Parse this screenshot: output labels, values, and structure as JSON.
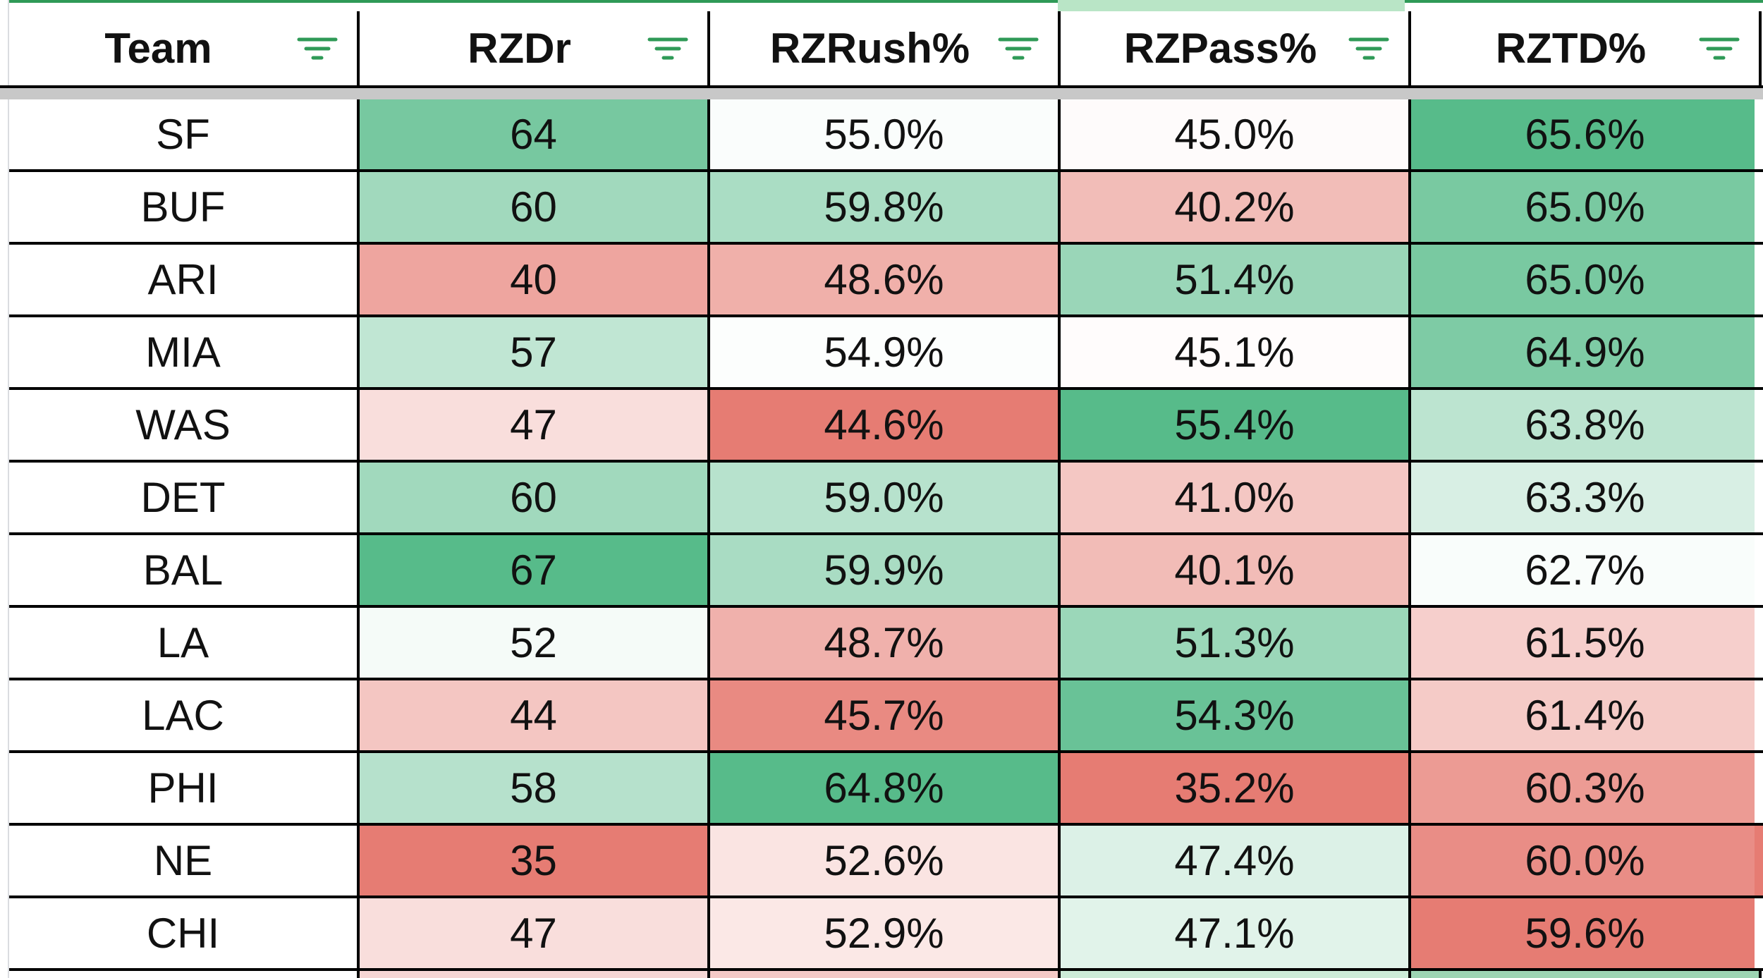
{
  "columns": [
    {
      "label": "Team",
      "icon": "filter-icon"
    },
    {
      "label": "RZDr",
      "icon": "filter-icon"
    },
    {
      "label": "RZRush%",
      "icon": "filter-icon"
    },
    {
      "label": "RZPass%",
      "icon": "filter-icon"
    },
    {
      "label": "RZTD%",
      "icon": "filter-icon"
    }
  ],
  "rows": [
    {
      "team": "SF",
      "rzdr": "64",
      "rzrush": "55.0%",
      "rzpass": "45.0%",
      "rztd": "65.6%"
    },
    {
      "team": "BUF",
      "rzdr": "60",
      "rzrush": "59.8%",
      "rzpass": "40.2%",
      "rztd": "65.0%"
    },
    {
      "team": "ARI",
      "rzdr": "40",
      "rzrush": "48.6%",
      "rzpass": "51.4%",
      "rztd": "65.0%"
    },
    {
      "team": "MIA",
      "rzdr": "57",
      "rzrush": "54.9%",
      "rzpass": "45.1%",
      "rztd": "64.9%"
    },
    {
      "team": "WAS",
      "rzdr": "47",
      "rzrush": "44.6%",
      "rzpass": "55.4%",
      "rztd": "63.8%"
    },
    {
      "team": "DET",
      "rzdr": "60",
      "rzrush": "59.0%",
      "rzpass": "41.0%",
      "rztd": "63.3%"
    },
    {
      "team": "BAL",
      "rzdr": "67",
      "rzrush": "59.9%",
      "rzpass": "40.1%",
      "rztd": "62.7%"
    },
    {
      "team": "LA",
      "rzdr": "52",
      "rzrush": "48.7%",
      "rzpass": "51.3%",
      "rztd": "61.5%"
    },
    {
      "team": "LAC",
      "rzdr": "44",
      "rzrush": "45.7%",
      "rzpass": "54.3%",
      "rztd": "61.4%"
    },
    {
      "team": "PHI",
      "rzdr": "58",
      "rzrush": "64.8%",
      "rzpass": "35.2%",
      "rztd": "60.3%"
    },
    {
      "team": "NE",
      "rzdr": "35",
      "rzrush": "52.6%",
      "rzpass": "47.4%",
      "rztd": "60.0%"
    },
    {
      "team": "CHI",
      "rzdr": "47",
      "rzrush": "52.9%",
      "rzpass": "47.1%",
      "rztd": "59.6%"
    }
  ],
  "colors": {
    "accent": "#2f9a57",
    "scale_green": "#57bb8a",
    "scale_white": "#ffffff",
    "scale_red": "#e67c73"
  }
}
